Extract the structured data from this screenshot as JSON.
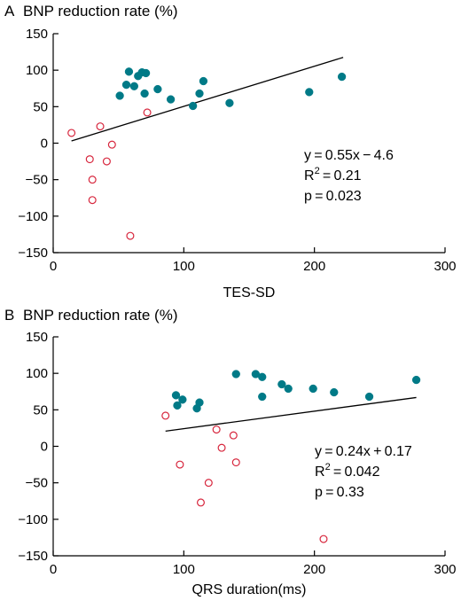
{
  "chart_data": [
    {
      "type": "scatter",
      "panel_label": "A",
      "title": "BNP reduction rate (%)",
      "xlabel": "TES-SD",
      "ylabel": "",
      "xlim": [
        0,
        300
      ],
      "ylim": [
        -150,
        150
      ],
      "xticks": [
        "0",
        "100",
        "200",
        "300"
      ],
      "yticks": [
        "150",
        "100",
        "50",
        "0",
        "−50",
        "−100",
        "−150"
      ],
      "xtick_values": [
        0,
        100,
        200,
        300
      ],
      "ytick_values": [
        150,
        100,
        50,
        0,
        -50,
        -100,
        -150
      ],
      "grid": false,
      "series": [
        {
          "marker": "filled-circle",
          "color": "#007a87",
          "x": [
            51,
            56,
            58,
            62,
            65,
            68,
            70,
            71,
            80,
            90,
            107,
            112,
            115,
            135,
            196,
            221
          ],
          "y": [
            65,
            80,
            98,
            78,
            92,
            97,
            68,
            96,
            74,
            60,
            51,
            68,
            85,
            55,
            70,
            91
          ]
        },
        {
          "marker": "open-circle",
          "color": "#d7263d",
          "x": [
            14,
            36,
            45,
            41,
            28,
            30,
            30,
            59,
            72
          ],
          "y": [
            14,
            23,
            -2,
            -25,
            -22,
            -50,
            -78,
            -127,
            42
          ]
        }
      ],
      "fit": {
        "x": [
          14,
          222
        ],
        "y": [
          3.1,
          117.5
        ]
      },
      "annotation": {
        "equation": "y = 0.55x − 4.6",
        "r2_label": "R",
        "r2_sup": "2",
        "r2_value": " = 0.21",
        "p": "p = 0.023"
      }
    },
    {
      "type": "scatter",
      "panel_label": "B",
      "title": "BNP reduction rate (%)",
      "xlabel": "QRS duration(ms)",
      "ylabel": "",
      "xlim": [
        0,
        300
      ],
      "ylim": [
        -150,
        150
      ],
      "xticks": [
        "0",
        "100",
        "200",
        "300"
      ],
      "yticks": [
        "150",
        "100",
        "50",
        "0",
        "−50",
        "−100",
        "−150"
      ],
      "xtick_values": [
        0,
        100,
        200,
        300
      ],
      "ytick_values": [
        150,
        100,
        50,
        0,
        -50,
        -100,
        -150
      ],
      "grid": false,
      "series": [
        {
          "marker": "filled-circle",
          "color": "#007a87",
          "x": [
            94,
            95,
            99,
            110,
            112,
            140,
            155,
            160,
            160,
            175,
            180,
            199,
            215,
            242,
            278
          ],
          "y": [
            70,
            56,
            64,
            52,
            60,
            99,
            99,
            95,
            68,
            85,
            79,
            79,
            74,
            68,
            91
          ]
        },
        {
          "marker": "open-circle",
          "color": "#d7263d",
          "x": [
            86,
            97,
            113,
            119,
            125,
            129,
            138,
            140,
            207
          ],
          "y": [
            42,
            -25,
            -77,
            -50,
            23,
            -2,
            15,
            -22,
            -127
          ]
        }
      ],
      "fit": {
        "x": [
          86,
          278
        ],
        "y": [
          20.8,
          66.9
        ]
      },
      "annotation": {
        "equation": "y = 0.24x + 0.17",
        "r2_label": "R",
        "r2_sup": "2",
        "r2_value": " = 0.042",
        "p": "p = 0.33"
      }
    }
  ]
}
